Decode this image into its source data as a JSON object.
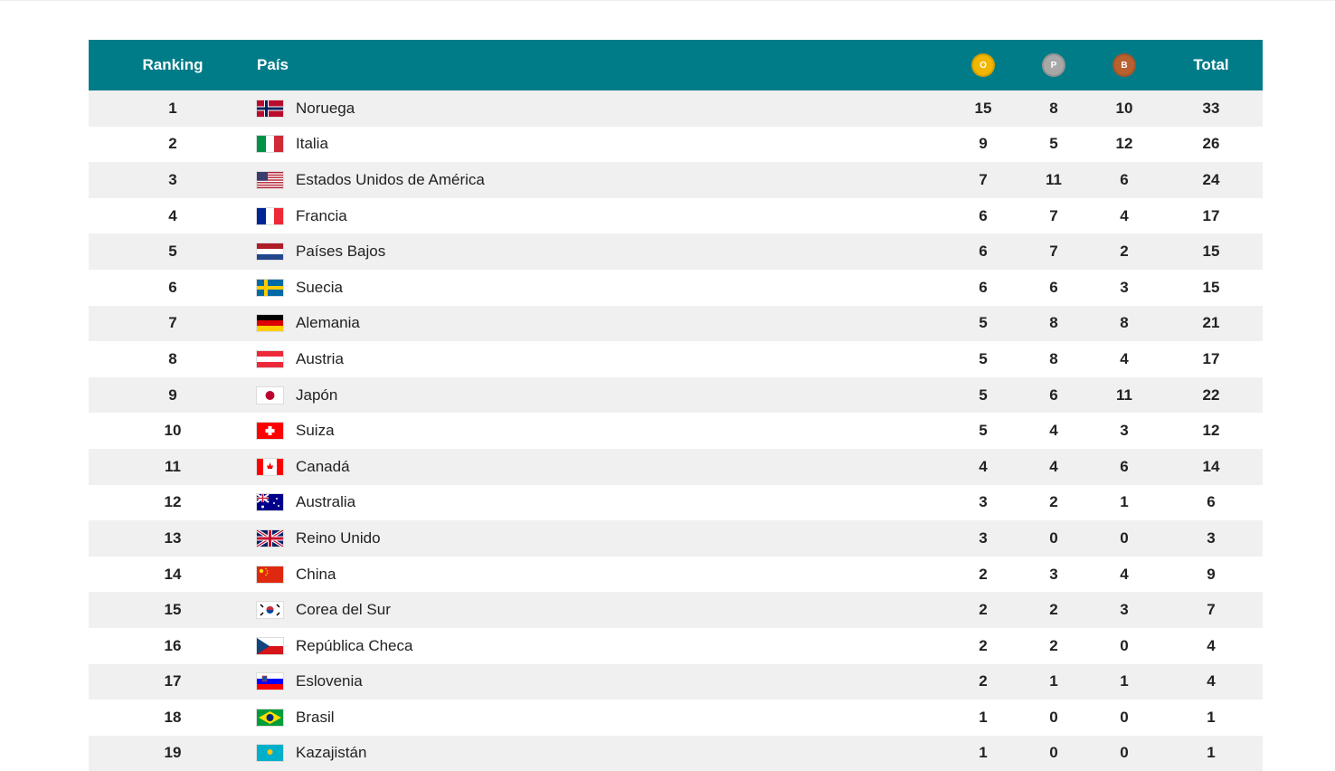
{
  "header": {
    "ranking": "Ranking",
    "country": "País",
    "gold": {
      "letter": "O",
      "color": "#f2b600"
    },
    "silver": {
      "letter": "P",
      "color": "#a8a8a8"
    },
    "bronze": {
      "letter": "B",
      "color": "#b8612f"
    },
    "total": "Total",
    "bg_color": "#007c89"
  },
  "rows": [
    {
      "rank": "1",
      "country": "Noruega",
      "flag": "flag-norway",
      "gold": "15",
      "silver": "8",
      "bronze": "10",
      "total": "33"
    },
    {
      "rank": "2",
      "country": "Italia",
      "flag": "flag-italy",
      "gold": "9",
      "silver": "5",
      "bronze": "12",
      "total": "26"
    },
    {
      "rank": "3",
      "country": "Estados Unidos de América",
      "flag": "flag-usa",
      "gold": "7",
      "silver": "11",
      "bronze": "6",
      "total": "24"
    },
    {
      "rank": "4",
      "country": "Francia",
      "flag": "flag-france",
      "gold": "6",
      "silver": "7",
      "bronze": "4",
      "total": "17"
    },
    {
      "rank": "5",
      "country": "Países Bajos",
      "flag": "flag-netherlands",
      "gold": "6",
      "silver": "7",
      "bronze": "2",
      "total": "15"
    },
    {
      "rank": "6",
      "country": "Suecia",
      "flag": "flag-sweden",
      "gold": "6",
      "silver": "6",
      "bronze": "3",
      "total": "15"
    },
    {
      "rank": "7",
      "country": "Alemania",
      "flag": "flag-germany",
      "gold": "5",
      "silver": "8",
      "bronze": "8",
      "total": "21"
    },
    {
      "rank": "8",
      "country": "Austria",
      "flag": "flag-austria",
      "gold": "5",
      "silver": "8",
      "bronze": "4",
      "total": "17"
    },
    {
      "rank": "9",
      "country": "Japón",
      "flag": "flag-japan",
      "gold": "5",
      "silver": "6",
      "bronze": "11",
      "total": "22"
    },
    {
      "rank": "10",
      "country": "Suiza",
      "flag": "flag-switzerland",
      "gold": "5",
      "silver": "4",
      "bronze": "3",
      "total": "12"
    },
    {
      "rank": "11",
      "country": "Canadá",
      "flag": "flag-canada",
      "gold": "4",
      "silver": "4",
      "bronze": "6",
      "total": "14"
    },
    {
      "rank": "12",
      "country": "Australia",
      "flag": "flag-australia",
      "gold": "3",
      "silver": "2",
      "bronze": "1",
      "total": "6"
    },
    {
      "rank": "13",
      "country": "Reino Unido",
      "flag": "flag-uk",
      "gold": "3",
      "silver": "0",
      "bronze": "0",
      "total": "3"
    },
    {
      "rank": "14",
      "country": "China",
      "flag": "flag-china",
      "gold": "2",
      "silver": "3",
      "bronze": "4",
      "total": "9"
    },
    {
      "rank": "15",
      "country": "Corea del Sur",
      "flag": "flag-south-korea",
      "gold": "2",
      "silver": "2",
      "bronze": "3",
      "total": "7"
    },
    {
      "rank": "16",
      "country": "República Checa",
      "flag": "flag-czech",
      "gold": "2",
      "silver": "2",
      "bronze": "0",
      "total": "4"
    },
    {
      "rank": "17",
      "country": "Eslovenia",
      "flag": "flag-slovenia",
      "gold": "2",
      "silver": "1",
      "bronze": "1",
      "total": "4"
    },
    {
      "rank": "18",
      "country": "Brasil",
      "flag": "flag-brazil",
      "gold": "1",
      "silver": "0",
      "bronze": "0",
      "total": "1"
    },
    {
      "rank": "19",
      "country": "Kazajistán",
      "flag": "flag-kazakhstan",
      "gold": "1",
      "silver": "0",
      "bronze": "0",
      "total": "1"
    }
  ]
}
